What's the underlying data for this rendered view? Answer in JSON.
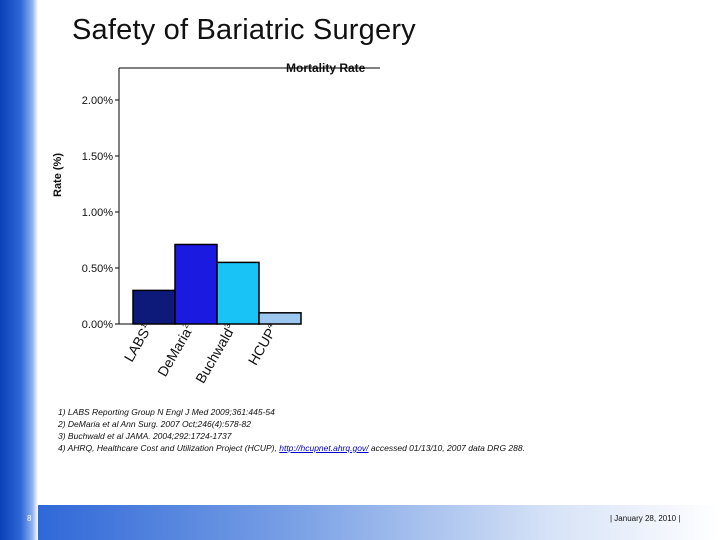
{
  "slide": {
    "title": "Safety of Bariatric Surgery",
    "page_number": "8",
    "footer_date": "| January 28, 2010 |"
  },
  "chart_data": {
    "type": "bar",
    "title": "Mortality Rate",
    "ylabel": "Rate (%)",
    "xlabel": "",
    "ylim": [
      0,
      2.0
    ],
    "yticks": [
      "0.00%",
      "0.50%",
      "1.00%",
      "1.50%",
      "2.00%"
    ],
    "ytick_values": [
      0,
      0.5,
      1.0,
      1.5,
      2.0
    ],
    "grid": false,
    "categories": [
      {
        "label": "LABS",
        "sup": "1"
      },
      {
        "label": "DeMaria",
        "sup": "2"
      },
      {
        "label": "Buchwald",
        "sup": "3"
      },
      {
        "label": "HCUP",
        "sup": "4"
      }
    ],
    "values": [
      0.3,
      0.71,
      0.55,
      0.1
    ],
    "colors": [
      "#0d1a7a",
      "#1a1ae0",
      "#19c3f5",
      "#9cc8f0"
    ]
  },
  "footnotes": [
    {
      "text": "1) LABS Reporting Group N Engl J Med 2009;361:445-54"
    },
    {
      "text": "2) DeMaria et al Ann Surg. 2007 Oct;246(4):578-82"
    },
    {
      "text": "3) Buchwald et al JAMA. 2004;292:1724-1737"
    },
    {
      "text": "4) AHRQ, Healthcare Cost and Utilization Project (HCUP), ",
      "link": "http://hcupnet.ahrq.gov/",
      "after": " accessed 01/13/10, 2007 data DRG 288."
    }
  ]
}
